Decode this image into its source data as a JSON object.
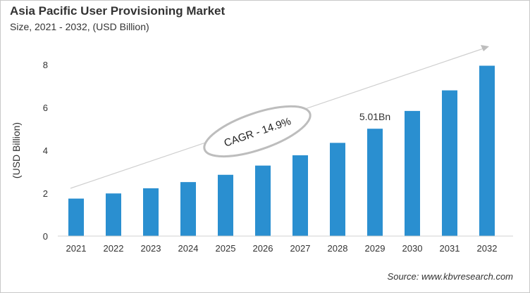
{
  "chart_data": {
    "type": "bar",
    "title": "Asia Pacific User Provisioning Market",
    "subtitle": "Size, 2021 - 2032, (USD Billion)",
    "xlabel": "",
    "ylabel": "(USD Billion)",
    "ylim": [
      0,
      8
    ],
    "yticks": [
      0,
      2,
      4,
      6,
      8
    ],
    "categories": [
      "2021",
      "2022",
      "2023",
      "2024",
      "2025",
      "2026",
      "2027",
      "2028",
      "2029",
      "2030",
      "2031",
      "2032"
    ],
    "values": [
      1.75,
      1.99,
      2.23,
      2.52,
      2.86,
      3.29,
      3.77,
      4.35,
      5.01,
      5.84,
      6.8,
      7.95
    ],
    "bar_color": "#2a8fd0",
    "grid": false,
    "annotations": {
      "cagr": "CAGR - 14.9%",
      "data_label": "5.01Bn",
      "data_label_category": "2029"
    },
    "source": "Source: www.kbvresearch.com"
  }
}
